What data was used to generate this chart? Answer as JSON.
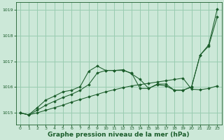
{
  "background_color": "#cce8d8",
  "grid_color": "#99ccb0",
  "line_color": "#1a5c2a",
  "xlabel": "Graphe pression niveau de la mer (hPa)",
  "xlabel_fontsize": 6.5,
  "ylim": [
    1014.55,
    1019.3
  ],
  "xlim": [
    -0.5,
    23.5
  ],
  "yticks": [
    1015,
    1016,
    1017,
    1018,
    1019
  ],
  "xticks": [
    0,
    1,
    2,
    3,
    4,
    5,
    6,
    7,
    8,
    9,
    10,
    11,
    12,
    13,
    14,
    15,
    16,
    17,
    18,
    19,
    20,
    21,
    22,
    23
  ],
  "series": [
    {
      "x": [
        0,
        1,
        2,
        3,
        4,
        5,
        6,
        7,
        8,
        9,
        10,
        11,
        12,
        13,
        14,
        15,
        16,
        17,
        18,
        19,
        20,
        21,
        22,
        23
      ],
      "y": [
        1015.0,
        1014.92,
        1015.0,
        1015.1,
        1015.2,
        1015.3,
        1015.42,
        1015.52,
        1015.62,
        1015.72,
        1015.82,
        1015.9,
        1015.98,
        1016.05,
        1016.1,
        1016.15,
        1016.2,
        1016.25,
        1016.3,
        1016.35,
        1015.92,
        1015.9,
        1015.95,
        1016.05
      ]
    },
    {
      "x": [
        0,
        1,
        2,
        3,
        4,
        5,
        6,
        7,
        8,
        9,
        10,
        11,
        12,
        13,
        14,
        15,
        16,
        17,
        18,
        19,
        20,
        21,
        22,
        23
      ],
      "y": [
        1015.0,
        1014.92,
        1015.1,
        1015.3,
        1015.45,
        1015.6,
        1015.72,
        1015.88,
        1016.1,
        1016.55,
        1016.65,
        1016.65,
        1016.65,
        1016.55,
        1015.95,
        1015.95,
        1016.1,
        1016.05,
        1015.88,
        1015.88,
        1016.0,
        1017.25,
        1017.6,
        1018.75
      ]
    },
    {
      "x": [
        0,
        1,
        2,
        3,
        4,
        5,
        6,
        7,
        8,
        9,
        10,
        11,
        12,
        13,
        14,
        15,
        16,
        17,
        18,
        19,
        20,
        21,
        22,
        23
      ],
      "y": [
        1015.0,
        1014.92,
        1015.2,
        1015.5,
        1015.65,
        1015.82,
        1015.88,
        1016.02,
        1016.62,
        1016.82,
        1016.65,
        1016.65,
        1016.68,
        1016.52,
        1016.3,
        1015.95,
        1016.12,
        1016.12,
        1015.88,
        1015.88,
        1016.02,
        1017.25,
        1017.65,
        1019.05
      ]
    }
  ]
}
